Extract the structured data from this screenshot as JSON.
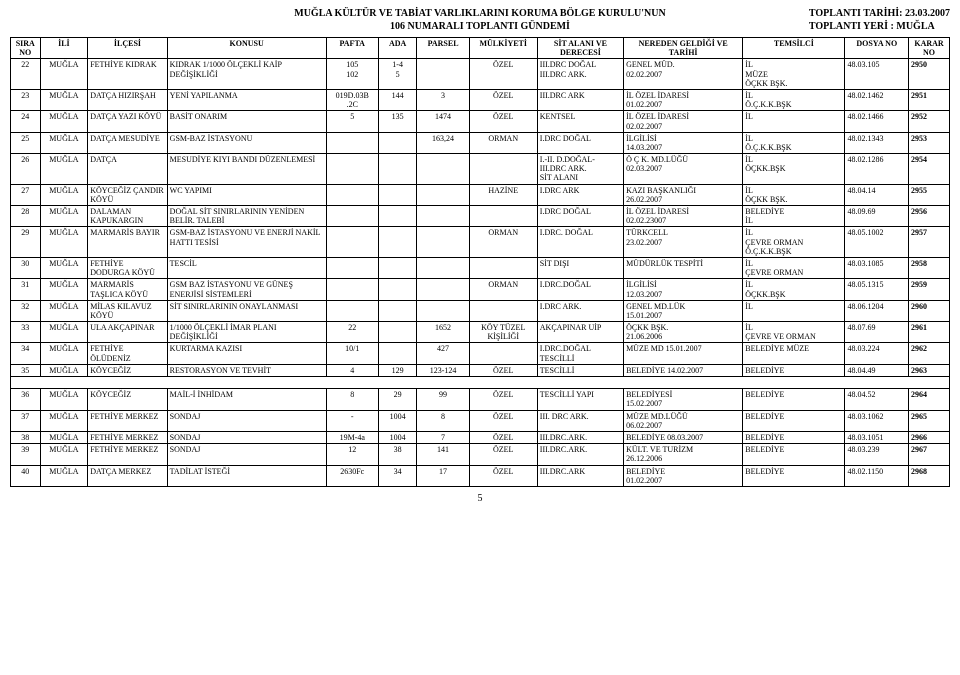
{
  "header": {
    "line1": "MUĞLA KÜLTÜR VE TABİAT VARLIKLARINI KORUMA BÖLGE KURULU'NUN",
    "line2": "106 NUMARALI TOPLANTI GÜNDEMİ",
    "right1": "TOPLANTI TARİHİ: 23.03.2007",
    "right2": "TOPLANTI YERİ : MUĞLA"
  },
  "columns": [
    "SIRA NO",
    "İLİ",
    "İLÇESİ",
    "KONUSU",
    "PAFTA",
    "ADA",
    "PARSEL",
    "MÜLKİYETİ",
    "SİT ALANI VE DERECESİ",
    "NEREDEN GELDİĞİ VE TARİHİ",
    "TEMSİLCİ",
    "DOSYA NO",
    "KARAR NO"
  ],
  "rows": [
    {
      "sira": "22",
      "ili": "MUĞLA",
      "ilcesi": "FETHİYE KIDRAK",
      "konusu": "KIDRAK 1/1000 ÖLÇEKLİ KAİP DEĞİŞİKLİĞİ",
      "pafta": "105\n102",
      "ada": "1-4\n5",
      "parsel": "",
      "mulk": "ÖZEL",
      "sit": "III.DRC DOĞAL\nIII.DRC ARK.",
      "nereden": "GENEL MÜD.\n02.02.2007",
      "temsil": "İL\nMÜZE\nÖÇKK BŞK.",
      "dosya": "48.03.105",
      "karar": "2950"
    },
    {
      "sira": "23",
      "ili": "MUĞLA",
      "ilcesi": "DATÇA HIZIRŞAH",
      "konusu": "YENİ YAPILANMA",
      "pafta": "019D.03B\n.2C",
      "ada": "144",
      "parsel": "3",
      "mulk": "ÖZEL",
      "sit": "III.DRC ARK",
      "nereden": "İL ÖZEL İDARESİ\n01.02.2007",
      "temsil": "İL\nÖ.Ç.K.K.BŞK",
      "dosya": "48.02.1462",
      "karar": "2951"
    },
    {
      "sira": "24",
      "ili": "MUĞLA",
      "ilcesi": "DATÇA YAZI KÖYÜ",
      "konusu": "BASİT ONARIM",
      "pafta": "5",
      "ada": "135",
      "parsel": "1474",
      "mulk": "ÖZEL",
      "sit": "KENTSEL",
      "nereden": "İL ÖZEL İDARESİ\n02.02.2007",
      "temsil": "İL",
      "dosya": "48.02.1466",
      "karar": "2952"
    },
    {
      "sira": "25",
      "ili": "MUĞLA",
      "ilcesi": "DATÇA MESUDİYE",
      "konusu": "GSM-BAZ İSTASYONU",
      "pafta": "",
      "ada": "",
      "parsel": "163,24",
      "mulk": "ORMAN",
      "sit": "I.DRC DOĞAL",
      "nereden": "İLGİLİSİ\n14.03.2007",
      "temsil": "İL\nÖ.Ç.K.K.BŞK",
      "dosya": "48.02.1343",
      "karar": "2953"
    },
    {
      "sira": "26",
      "ili": "MUĞLA",
      "ilcesi": "DATÇA",
      "konusu": "MESUDİYE KIYI BANDI DÜZENLEMESİ",
      "pafta": "",
      "ada": "",
      "parsel": "",
      "mulk": "",
      "sit": "I.-II. D.DOĞAL-\nIII.DRC ARK.\nSİT ALANI",
      "nereden": "Ö Ç K. MD.LÜĞÜ\n02.03.2007",
      "temsil": "İL\nÖÇKK.BŞK",
      "dosya": "48.02.1286",
      "karar": "2954"
    },
    {
      "sira": "27",
      "ili": "MUĞLA",
      "ilcesi": "KÖYCEĞİZ ÇANDIR KÖYÜ",
      "konusu": "WC YAPIMI",
      "pafta": "",
      "ada": "",
      "parsel": "",
      "mulk": "HAZİNE",
      "sit": "I.DRC ARK",
      "nereden": "KAZI BAŞKANLIĞI\n26.02.2007",
      "temsil": "İL\nÖÇKK BŞK.",
      "dosya": "48.04.14",
      "karar": "2955"
    },
    {
      "sira": "28",
      "ili": "MUĞLA",
      "ilcesi": "DALAMAN KAPUKARGIN",
      "konusu": "DOĞAL SİT SINIRLARININ YENİDEN BELİR. TALEBİ",
      "pafta": "",
      "ada": "",
      "parsel": "",
      "mulk": "",
      "sit": "I.DRC DOĞAL",
      "nereden": "İL ÖZEL İDARESİ\n02.02.23007",
      "temsil": "BELEDİYE\nİL",
      "dosya": "48.09.69",
      "karar": "2956"
    },
    {
      "sira": "29",
      "ili": "MUĞLA",
      "ilcesi": "MARMARİS BAYIR",
      "konusu": "GSM-BAZ İSTASYONU VE ENERJİ NAKİL HATTI TESİSİ",
      "pafta": "",
      "ada": "",
      "parsel": "",
      "mulk": "ORMAN",
      "sit": "I.DRC. DOĞAL",
      "nereden": "TÜRKCELL\n23.02.2007",
      "temsil": "İL\nÇEVRE ORMAN\nÖ.Ç.K.K.BŞK",
      "dosya": "48.05.1002",
      "karar": "2957"
    },
    {
      "sira": "30",
      "ili": "MUĞLA",
      "ilcesi": "FETHİYE DODURGA KÖYÜ",
      "konusu": "TESCİL",
      "pafta": "",
      "ada": "",
      "parsel": "",
      "mulk": "",
      "sit": "SİT DIŞI",
      "nereden": "MÜDÜRLÜK TESPİTİ",
      "temsil": "İL\nÇEVRE ORMAN",
      "dosya": "48.03.1085",
      "karar": "2958"
    },
    {
      "sira": "31",
      "ili": "MUĞLA",
      "ilcesi": "MARMARİS TAŞLICA KÖYÜ",
      "konusu": "GSM BAZ İSTASYONU VE GÜNEŞ ENERJİSİ SİSTEMLERİ",
      "pafta": "",
      "ada": "",
      "parsel": "",
      "mulk": "ORMAN",
      "sit": "I.DRC.DOĞAL",
      "nereden": "İLGİLİSİ\n12.03.2007",
      "temsil": "İL\nÖÇKK.BŞK",
      "dosya": "48.05.1315",
      "karar": "2959"
    },
    {
      "sira": "32",
      "ili": "MUĞLA",
      "ilcesi": "MİLAS KILAVUZ KÖYÜ",
      "konusu": "SİT SINIRLARININ ONAYLANMASI",
      "pafta": "",
      "ada": "",
      "parsel": "",
      "mulk": "",
      "sit": "I.DRC ARK.",
      "nereden": "GENEL MD.LÜK\n15.01.2007",
      "temsil": "İL",
      "dosya": "48.06.1204",
      "karar": "2960"
    },
    {
      "sira": "33",
      "ili": "MUĞLA",
      "ilcesi": "ULA AKÇAPINAR",
      "konusu": "1/1000 ÖLÇEKLİ İMAR PLANI DEĞİŞİKLİĞİ",
      "pafta": "22",
      "ada": "",
      "parsel": "1652",
      "mulk": "KÖY TÜZEL KİŞİLİĞİ",
      "sit": "AKÇAPINAR UİP",
      "nereden": "ÖÇKK BŞK.\n21.06.2006",
      "temsil": "İL\nÇEVRE VE ORMAN",
      "dosya": "48.07.69",
      "karar": "2961"
    },
    {
      "sira": "34",
      "ili": "MUĞLA",
      "ilcesi": "FETHİYE ÖLÜDENİZ",
      "konusu": "KURTARMA KAZISI",
      "pafta": "10/1",
      "ada": "",
      "parsel": "427",
      "mulk": "",
      "sit": "I.DRC.DOĞAL\nTESCİLLİ",
      "nereden": "MÜZE MD 15.01.2007",
      "temsil": "BELEDİYE MÜZE",
      "dosya": "48.03.224",
      "karar": "2962"
    },
    {
      "sira": "35",
      "ili": "MUĞLA",
      "ilcesi": "KÖYCEĞİZ",
      "konusu": "RESTORASYON VE TEVHİT",
      "pafta": "4",
      "ada": "129",
      "parsel": "123-124",
      "mulk": "ÖZEL",
      "sit": "TESCİLLİ",
      "nereden": "BELEDİYE 14.02.2007",
      "temsil": "BELEDİYE",
      "dosya": "48.04.49",
      "karar": "2963"
    },
    {
      "sira": "36",
      "ili": "MUĞLA",
      "ilcesi": "KÖYCEĞİZ",
      "konusu": "MAİL-İ İNHİDAM",
      "pafta": "8",
      "ada": "29",
      "parsel": "99",
      "mulk": "ÖZEL",
      "sit": "TESCİLLİ YAPI",
      "nereden": "BELEDİYESİ\n15.02.2007",
      "temsil": "BELEDİYE",
      "dosya": "48.04.52",
      "karar": "2964"
    },
    {
      "sira": "37",
      "ili": "MUĞLA",
      "ilcesi": "FETHİYE MERKEZ",
      "konusu": "SONDAJ",
      "pafta": "-",
      "ada": "1004",
      "parsel": "8",
      "mulk": "ÖZEL",
      "sit": "III. DRC ARK.",
      "nereden": "MÜZE MD.LÜĞÜ\n06.02.2007",
      "temsil": "BELEDİYE",
      "dosya": "48.03.1062",
      "karar": "2965"
    },
    {
      "sira": "38",
      "ili": "MUĞLA",
      "ilcesi": "FETHİYE MERKEZ",
      "konusu": "SONDAJ",
      "pafta": "19M-4a",
      "ada": "1004",
      "parsel": "7",
      "mulk": "ÖZEL",
      "sit": "III.DRC.ARK.",
      "nereden": "BELEDİYE 08.03.2007",
      "temsil": "BELEDİYE",
      "dosya": "48.03.1051",
      "karar": "2966"
    },
    {
      "sira": "39",
      "ili": "MUĞLA",
      "ilcesi": "FETHİYE MERKEZ",
      "konusu": "SONDAJ",
      "pafta": "12",
      "ada": "38",
      "parsel": "141",
      "mulk": "ÖZEL",
      "sit": "III.DRC.ARK.",
      "nereden": "KÜLT. VE TURİZM\n26.12.2006",
      "temsil": "BELEDİYE",
      "dosya": "48.03.239",
      "karar": "2967"
    },
    {
      "sira": "40",
      "ili": "MUĞLA",
      "ilcesi": "DATÇA MERKEZ",
      "konusu": "TADİLAT İSTEĞİ",
      "pafta": "2630Fc",
      "ada": "34",
      "parsel": "17",
      "mulk": "ÖZEL",
      "sit": "III.DRC.ARK",
      "nereden": "BELEDİYE\n01.02.2007",
      "temsil": "BELEDİYE",
      "dosya": "48.02.1150",
      "karar": "2968"
    }
  ],
  "spacer_after_sira": "35",
  "page_number": "5"
}
